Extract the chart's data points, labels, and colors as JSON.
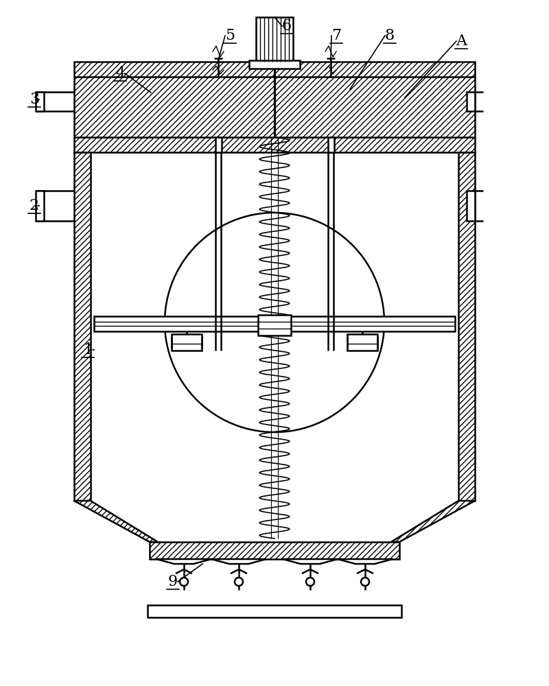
{
  "bg_color": "#ffffff",
  "line_color": "#000000",
  "fig_width": 8.0,
  "fig_height": 10.0
}
